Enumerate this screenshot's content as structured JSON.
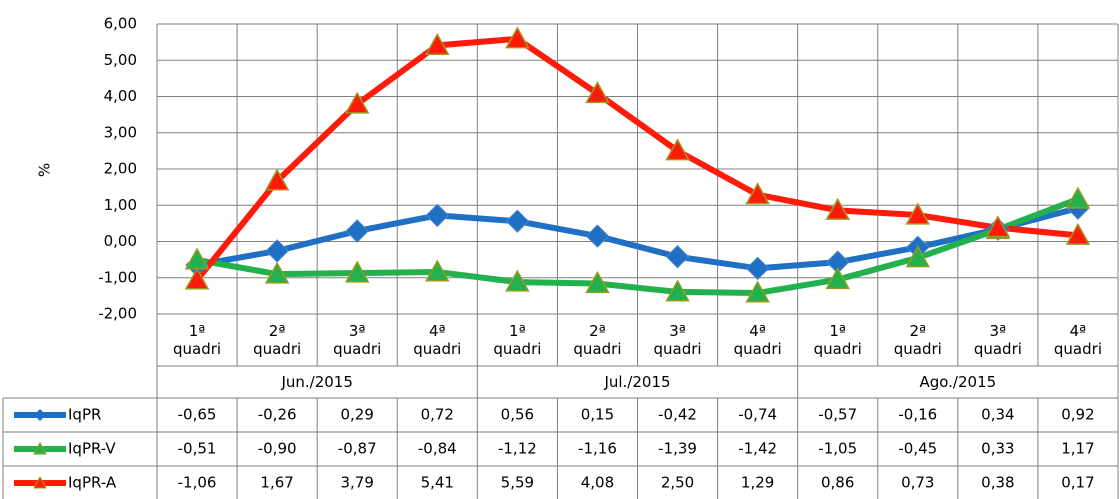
{
  "chart_data": {
    "type": "line",
    "y_label": "%",
    "ylim": [
      -2,
      6
    ],
    "yticks": [
      {
        "value": -2,
        "label": "-2,00"
      },
      {
        "value": -1,
        "label": "-1,00"
      },
      {
        "value": 0,
        "label": "0,00"
      },
      {
        "value": 1,
        "label": "1,00"
      },
      {
        "value": 2,
        "label": "2,00"
      },
      {
        "value": 3,
        "label": "3,00"
      },
      {
        "value": 4,
        "label": "4,00"
      },
      {
        "value": 5,
        "label": "5,00"
      },
      {
        "value": 6,
        "label": "6,00"
      }
    ],
    "grid": true,
    "categories": [
      "1ª quadri",
      "2ª quadri",
      "3ª quadri",
      "4ª quadri",
      "1ª quadri",
      "2ª quadri",
      "3ª quadri",
      "4ª quadri",
      "1ª quadri",
      "2ª quadri",
      "3ª quadri",
      "4ª quadri"
    ],
    "groups": [
      "Jun./2015",
      "Jul./2015",
      "Ago./2015"
    ],
    "series": [
      {
        "name": "IqPR",
        "color": "#1f6fc5",
        "marker": "diamond",
        "marker_color": "#1f6fc5",
        "values": [
          -0.65,
          -0.26,
          0.29,
          0.72,
          0.56,
          0.15,
          -0.42,
          -0.74,
          -0.57,
          -0.16,
          0.34,
          0.92
        ],
        "value_labels": [
          "-0,65",
          "-0,26",
          "0,29",
          "0,72",
          "0,56",
          "0,15",
          "-0,42",
          "-0,74",
          "-0,57",
          "-0,16",
          "0,34",
          "0,92"
        ]
      },
      {
        "name": "IqPR-V",
        "color": "#22b14c",
        "marker": "triangle",
        "marker_color": "#22b14c",
        "values": [
          -0.51,
          -0.9,
          -0.87,
          -0.84,
          -1.12,
          -1.16,
          -1.39,
          -1.42,
          -1.05,
          -0.45,
          0.33,
          1.17
        ],
        "value_labels": [
          "-0,51",
          "-0,90",
          "-0,87",
          "-0,84",
          "-1,12",
          "-1,16",
          "-1,39",
          "-1,42",
          "-1,05",
          "-0,45",
          "0,33",
          "1,17"
        ]
      },
      {
        "name": "IqPR-A",
        "color": "#ff1a0a",
        "marker": "triangle",
        "marker_color": "#ff1a0a",
        "values": [
          -1.06,
          1.67,
          3.79,
          5.41,
          5.59,
          4.08,
          2.5,
          1.29,
          0.86,
          0.73,
          0.38,
          0.17
        ],
        "value_labels": [
          "-1,06",
          "1,67",
          "3,79",
          "5,41",
          "5,59",
          "4,08",
          "2,50",
          "1,29",
          "0,86",
          "0,73",
          "0,38",
          "0,17"
        ]
      }
    ]
  }
}
